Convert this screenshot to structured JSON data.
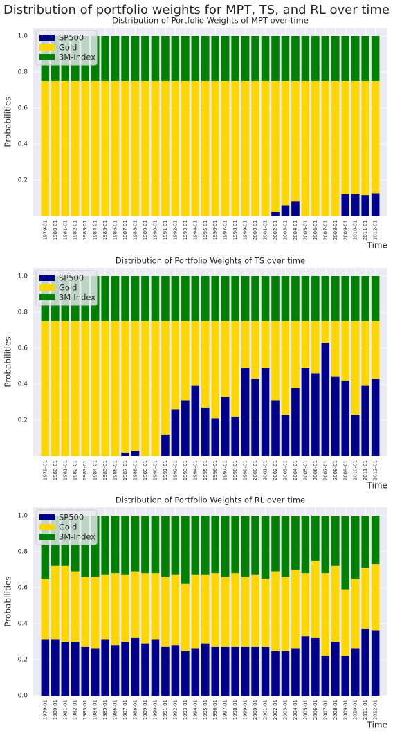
{
  "title": "Distribution of portfolio weights for MPT, TS, and RL over time",
  "chart_data": [
    {
      "type": "bar",
      "stacked": true,
      "title": "Distribution of Portfolio Weights of MPT over time",
      "xlabel": "Time",
      "ylabel": "Probabilities",
      "categories": [
        "1979-01",
        "1980-01",
        "1981-01",
        "1982-01",
        "1983-01",
        "1984-01",
        "1985-01",
        "1986-01",
        "1987-01",
        "1988-01",
        "1989-01",
        "1990-01",
        "1991-01",
        "1992-01",
        "1993-01",
        "1994-01",
        "1995-01",
        "1996-01",
        "1997-01",
        "1998-01",
        "1999-01",
        "2000-01",
        "2001-01",
        "2002-01",
        "2003-01",
        "2004-01",
        "2005-01",
        "2006-01",
        "2007-01",
        "2008-01",
        "2009-01",
        "2010-01",
        "2011-01",
        "2012-01"
      ],
      "series": [
        {
          "name": "SP500",
          "color": "#00008b",
          "values": [
            0,
            0,
            0,
            0,
            0,
            0,
            0,
            0,
            0,
            0,
            0,
            0,
            0,
            0,
            0,
            0,
            0,
            0,
            0,
            0,
            0,
            0,
            0,
            0.02,
            0.06,
            0.08,
            0,
            0,
            0,
            0,
            0.12,
            0.12,
            0.115,
            0.125
          ]
        },
        {
          "name": "Gold",
          "color": "#ffd700",
          "values": [
            0.75,
            0.75,
            0.75,
            0.75,
            0.75,
            0.75,
            0.75,
            0.75,
            0.75,
            0.75,
            0.75,
            0.75,
            0.75,
            0.75,
            0.75,
            0.75,
            0.75,
            0.75,
            0.75,
            0.75,
            0.75,
            0.75,
            0.75,
            0.73,
            0.69,
            0.67,
            0.75,
            0.75,
            0.75,
            0.75,
            0.63,
            0.63,
            0.635,
            0.625
          ]
        },
        {
          "name": "3M-Index",
          "color": "#008000",
          "values": [
            0.25,
            0.25,
            0.25,
            0.25,
            0.25,
            0.25,
            0.25,
            0.25,
            0.25,
            0.25,
            0.25,
            0.25,
            0.25,
            0.25,
            0.25,
            0.25,
            0.25,
            0.25,
            0.25,
            0.25,
            0.25,
            0.25,
            0.25,
            0.25,
            0.25,
            0.25,
            0.25,
            0.25,
            0.25,
            0.25,
            0.25,
            0.25,
            0.25,
            0.25
          ]
        }
      ],
      "ylim": [
        0,
        1.046
      ],
      "yticks": [
        0.2,
        0.4,
        0.6,
        0.8,
        {
          "value": 1,
          "label": "1.0"
        }
      ],
      "grid": true,
      "legend": "upper left"
    },
    {
      "type": "bar",
      "stacked": true,
      "title": "Distribution of Portfolio Weights of TS over time",
      "xlabel": "Time",
      "ylabel": "Probabilities",
      "categories": [
        "1979-01",
        "1980-01",
        "1981-01",
        "1982-01",
        "1983-01",
        "1984-01",
        "1985-01",
        "1986-01",
        "1987-01",
        "1988-01",
        "1989-01",
        "1990-01",
        "1991-01",
        "1992-01",
        "1993-01",
        "1994-01",
        "1995-01",
        "1996-01",
        "1997-01",
        "1998-01",
        "1999-01",
        "2000-01",
        "2001-01",
        "2002-01",
        "2003-01",
        "2004-01",
        "2005-01",
        "2006-01",
        "2007-01",
        "2008-01",
        "2009-01",
        "2010-01",
        "2011-01",
        "2012-01"
      ],
      "series": [
        {
          "name": "SP500",
          "color": "#00008b",
          "values": [
            0,
            0,
            0,
            0,
            0,
            0,
            0,
            0,
            0.02,
            0.03,
            0,
            0,
            0.12,
            0.26,
            0.31,
            0.39,
            0.27,
            0.21,
            0.33,
            0.22,
            0.49,
            0.43,
            0.49,
            0.31,
            0.23,
            0.38,
            0.49,
            0.46,
            0.63,
            0.44,
            0.42,
            0.23,
            0.39,
            0.43
          ]
        },
        {
          "name": "Gold",
          "color": "#ffd700",
          "values": [
            0.75,
            0.75,
            0.75,
            0.75,
            0.75,
            0.75,
            0.75,
            0.75,
            0.73,
            0.72,
            0.75,
            0.75,
            0.63,
            0.49,
            0.44,
            0.36,
            0.48,
            0.54,
            0.42,
            0.53,
            0.26,
            0.32,
            0.26,
            0.44,
            0.52,
            0.37,
            0.26,
            0.29,
            0.12,
            0.31,
            0.33,
            0.52,
            0.36,
            0.32
          ]
        },
        {
          "name": "3M-Index",
          "color": "#008000",
          "values": [
            0.25,
            0.25,
            0.25,
            0.25,
            0.25,
            0.25,
            0.25,
            0.25,
            0.25,
            0.25,
            0.25,
            0.25,
            0.25,
            0.25,
            0.25,
            0.25,
            0.25,
            0.25,
            0.25,
            0.25,
            0.25,
            0.25,
            0.25,
            0.25,
            0.25,
            0.25,
            0.25,
            0.25,
            0.25,
            0.25,
            0.25,
            0.25,
            0.25,
            0.25
          ]
        }
      ],
      "ylim": [
        0,
        1.046
      ],
      "yticks": [
        0.2,
        0.4,
        0.6,
        0.8,
        {
          "value": 1,
          "label": "1.0"
        }
      ],
      "grid": true,
      "legend": "upper left"
    },
    {
      "type": "bar",
      "stacked": true,
      "title": "Distribution of Portfolio Weights of RL over time",
      "xlabel": "Time",
      "ylabel": "Probabilities",
      "categories": [
        "1979-01",
        "1980-01",
        "1981-01",
        "1982-01",
        "1983-01",
        "1984-01",
        "1985-01",
        "1986-01",
        "1987-01",
        "1988-01",
        "1989-01",
        "1990-01",
        "1991-01",
        "1992-01",
        "1993-01",
        "1994-01",
        "1995-01",
        "1996-01",
        "1997-01",
        "1998-01",
        "1999-01",
        "2000-01",
        "2001-01",
        "2002-01",
        "2003-01",
        "2004-01",
        "2005-01",
        "2006-01",
        "2007-01",
        "2008-01",
        "2009-01",
        "2010-01",
        "2011-01",
        "2012-01"
      ],
      "series": [
        {
          "name": "SP500",
          "color": "#00008b",
          "values": [
            0.31,
            0.31,
            0.3,
            0.3,
            0.27,
            0.26,
            0.31,
            0.28,
            0.3,
            0.32,
            0.29,
            0.31,
            0.27,
            0.28,
            0.25,
            0.26,
            0.29,
            0.27,
            0.27,
            0.27,
            0.27,
            0.27,
            0.27,
            0.25,
            0.25,
            0.26,
            0.33,
            0.32,
            0.22,
            0.3,
            0.22,
            0.26,
            0.37,
            0.36
          ]
        },
        {
          "name": "Gold",
          "color": "#ffd700",
          "values": [
            0.34,
            0.41,
            0.42,
            0.39,
            0.39,
            0.4,
            0.36,
            0.4,
            0.37,
            0.37,
            0.39,
            0.37,
            0.39,
            0.39,
            0.37,
            0.41,
            0.38,
            0.41,
            0.39,
            0.41,
            0.39,
            0.4,
            0.38,
            0.44,
            0.41,
            0.44,
            0.35,
            0.43,
            0.46,
            0.42,
            0.37,
            0.39,
            0.34,
            0.37
          ]
        },
        {
          "name": "3M-Index",
          "color": "#008000",
          "values": [
            0.35,
            0.28,
            0.28,
            0.31,
            0.34,
            0.34,
            0.33,
            0.32,
            0.33,
            0.31,
            0.32,
            0.32,
            0.34,
            0.33,
            0.38,
            0.33,
            0.33,
            0.32,
            0.34,
            0.32,
            0.34,
            0.33,
            0.35,
            0.31,
            0.34,
            0.3,
            0.32,
            0.25,
            0.32,
            0.28,
            0.41,
            0.35,
            0.29,
            0.27
          ]
        }
      ],
      "ylim": [
        0,
        1.046
      ],
      "yticks": [
        {
          "value": 0,
          "label": "0.0"
        },
        0.2,
        0.4,
        0.6,
        0.8,
        {
          "value": 1,
          "label": "1.0"
        }
      ],
      "grid": true,
      "legend": "upper left"
    }
  ]
}
